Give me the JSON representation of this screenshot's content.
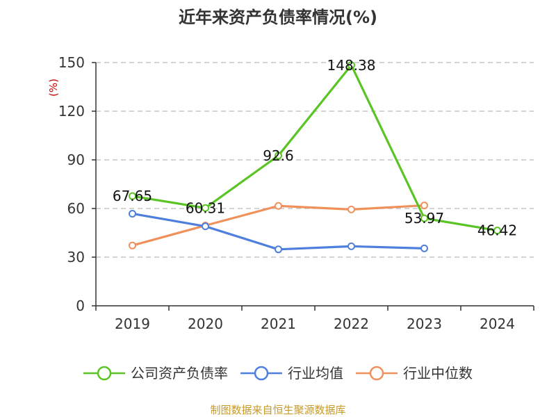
{
  "chart_data": {
    "type": "line",
    "title": "近年来资产负债率情况(%)",
    "ylabel": "(%)",
    "xlabel": "",
    "categories": [
      "2019",
      "2020",
      "2021",
      "2022",
      "2023",
      "2024"
    ],
    "y_ticks": [
      0,
      30,
      60,
      90,
      120,
      150
    ],
    "ylim": [
      0,
      150
    ],
    "grid": true,
    "legend_position": "bottom",
    "series": [
      {
        "name": "公司资产负债率",
        "color": "#5ac425",
        "values": [
          67.65,
          60.31,
          92.6,
          148.38,
          53.97,
          46.42
        ],
        "labels": [
          "67.65",
          "60.31",
          "92.6",
          "148.38",
          "53.97",
          "46.42"
        ]
      },
      {
        "name": "行业均值",
        "color": "#4f7fdc",
        "values": [
          56.8,
          49.0,
          34.8,
          36.7,
          35.4,
          null
        ]
      },
      {
        "name": "行业中位数",
        "color": "#f0915c",
        "values": [
          37.2,
          49.5,
          61.6,
          59.4,
          61.9,
          null
        ]
      }
    ],
    "source": "制图数据来自恒生聚源数据库"
  }
}
